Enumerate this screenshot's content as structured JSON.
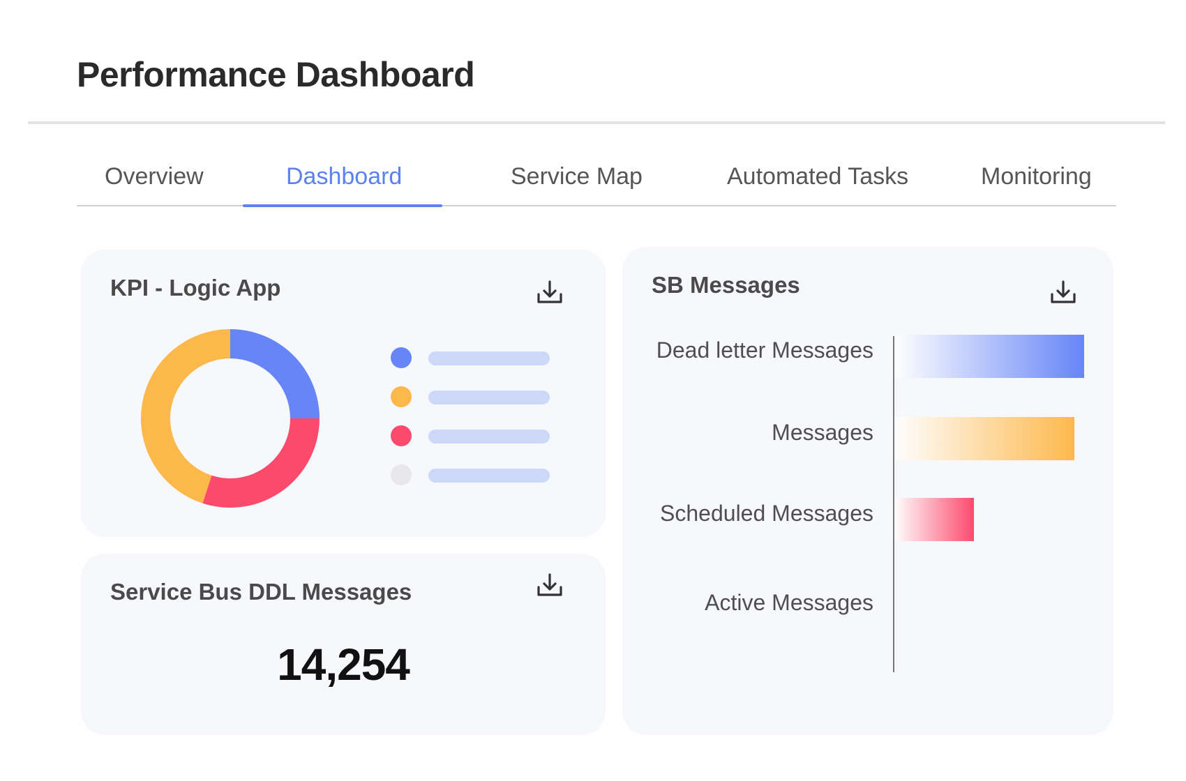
{
  "header": {
    "title": "Performance Dashboard"
  },
  "tabs": [
    {
      "label": "Overview"
    },
    {
      "label": "Dashboard",
      "active": true
    },
    {
      "label": "Service Map"
    },
    {
      "label": "Automated Tasks"
    },
    {
      "label": "Monitoring"
    }
  ],
  "kpi_card": {
    "title": "KPI - Logic App",
    "icon": "download-icon",
    "donut": [
      {
        "color": "#6685f7",
        "fraction": 0.25
      },
      {
        "color": "#fc4a6c",
        "fraction": 0.3
      },
      {
        "color": "#fdb84c",
        "fraction": 0.45
      }
    ],
    "legend_colors": [
      "#6685f7",
      "#fdb84c",
      "#fc4a6c",
      "#e8e8ea"
    ],
    "legend_bar_color": "#cdd8f8"
  },
  "ddl_card": {
    "title": "Service Bus DDL Messages",
    "icon": "download-icon",
    "value": "14,254"
  },
  "sb_card": {
    "title": "SB Messages",
    "icon": "download-icon",
    "chart_data": {
      "type": "bar",
      "orientation": "horizontal",
      "categories": [
        "Dead letter Messages",
        "Messages",
        "Scheduled Messages",
        "Active Messages"
      ],
      "values": [
        1.0,
        0.95,
        0.42,
        0
      ],
      "colors": [
        "#6685f7",
        "#fdb84c",
        "#fc4a6c",
        "#cccccc"
      ]
    }
  },
  "colors": {
    "accent": "#5b82f0",
    "card_bg": "#f7f8fc"
  }
}
